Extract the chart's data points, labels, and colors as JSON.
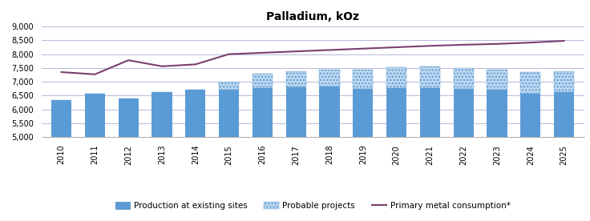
{
  "title": "Palladium, kOz",
  "years": [
    2010,
    2011,
    2012,
    2013,
    2014,
    2015,
    2016,
    2017,
    2018,
    2019,
    2020,
    2021,
    2022,
    2023,
    2024,
    2025
  ],
  "production_existing": [
    6350,
    6580,
    6400,
    6640,
    6700,
    6720,
    6760,
    6800,
    6820,
    6750,
    6780,
    6780,
    6750,
    6700,
    6580,
    6620
  ],
  "probable_projects": [
    0,
    0,
    0,
    0,
    0,
    270,
    530,
    580,
    620,
    700,
    750,
    760,
    750,
    750,
    760,
    750
  ],
  "consumption": [
    7350,
    7270,
    7780,
    7560,
    7630,
    8000,
    8050,
    8100,
    8150,
    8200,
    8250,
    8300,
    8340,
    8370,
    8420,
    8480
  ],
  "ylim": [
    5000,
    9000
  ],
  "yticks": [
    5000,
    5500,
    6000,
    6500,
    7000,
    7500,
    8000,
    8500,
    9000
  ],
  "bar_color_existing": "#5b9bd5",
  "bar_color_probable": "#bdd7ee",
  "line_color": "#7b3f6e",
  "grid_color": "#b8b8d8",
  "bg_color": "#ffffff",
  "legend_labels": [
    "Production at existing sites",
    "Probable projects",
    "Primary metal consumption*"
  ],
  "bar_width": 0.6
}
